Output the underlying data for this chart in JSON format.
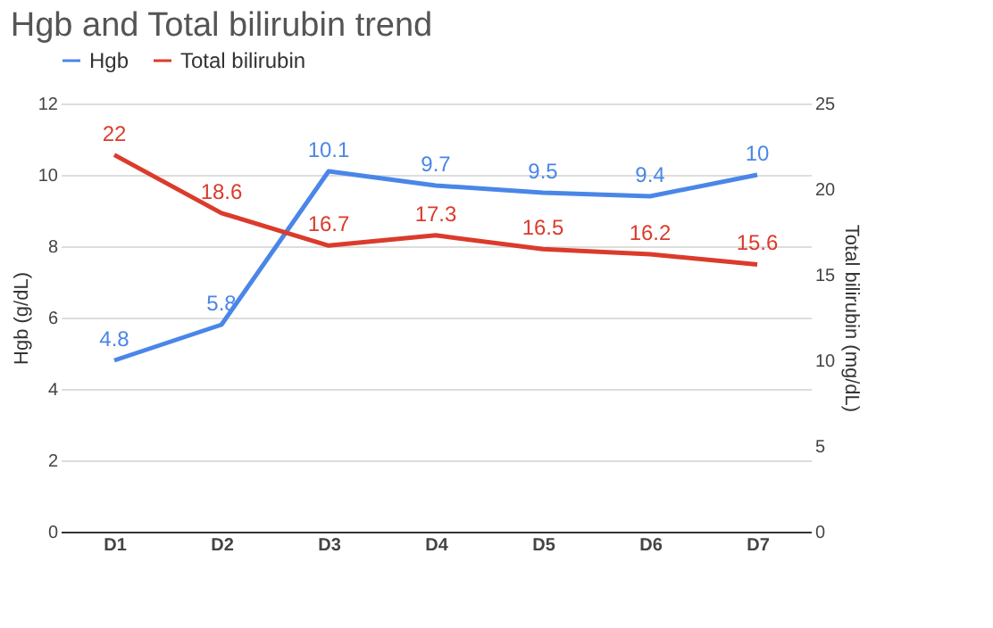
{
  "chart_data": {
    "type": "line",
    "title": "Hgb and Total bilirubin trend",
    "ylabel": "Hgb (g/dL)",
    "y2label": "Total bilirubin (mg/dL)",
    "categories": [
      "D1",
      "D2",
      "D3",
      "D4",
      "D5",
      "D6",
      "D7"
    ],
    "series": [
      {
        "name": "Hgb",
        "color": "#4a86e8",
        "values": [
          4.8,
          5.8,
          10.1,
          9.7,
          9.5,
          9.4,
          10
        ]
      },
      {
        "name": "Total bilirubin",
        "color": "#db3b2b",
        "axis": "y2",
        "values": [
          22,
          18.6,
          16.7,
          17.3,
          16.5,
          16.2,
          15.6
        ]
      }
    ],
    "ylim": [
      0,
      12
    ],
    "yticks": [
      0,
      2,
      4,
      6,
      8,
      10,
      12
    ],
    "y2lim": [
      0,
      25
    ],
    "y2ticks": [
      0,
      5,
      10,
      15,
      20,
      25
    ],
    "data_labels": true,
    "grid": "y",
    "legend": "top",
    "marker": "none",
    "line_style": "solid"
  }
}
